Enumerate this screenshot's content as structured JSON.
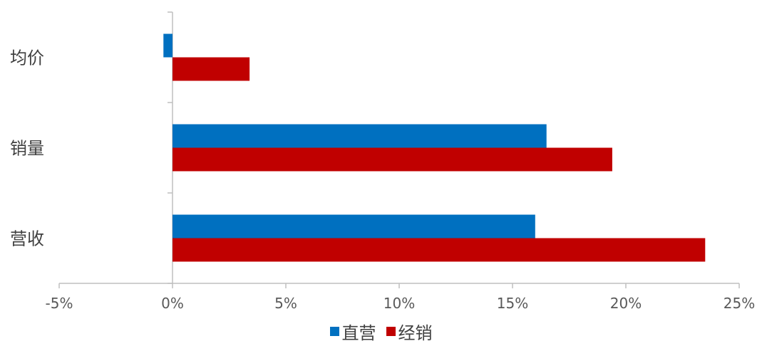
{
  "chart_data": {
    "type": "bar",
    "orientation": "horizontal",
    "categories": [
      "均价",
      "销量",
      "营收"
    ],
    "series": [
      {
        "name": "直营",
        "color": "#0070C0",
        "values": [
          -0.4,
          16.5,
          16.0
        ]
      },
      {
        "name": "经销",
        "color": "#C00000",
        "values": [
          3.4,
          19.4,
          23.5
        ]
      }
    ],
    "xlim": [
      -5,
      25
    ],
    "xticks": [
      -5,
      0,
      5,
      10,
      15,
      20,
      25
    ],
    "xtick_labels": [
      "-5%",
      "0%",
      "5%",
      "10%",
      "15%",
      "20%",
      "25%"
    ],
    "legend_position": "bottom",
    "grid": false
  }
}
